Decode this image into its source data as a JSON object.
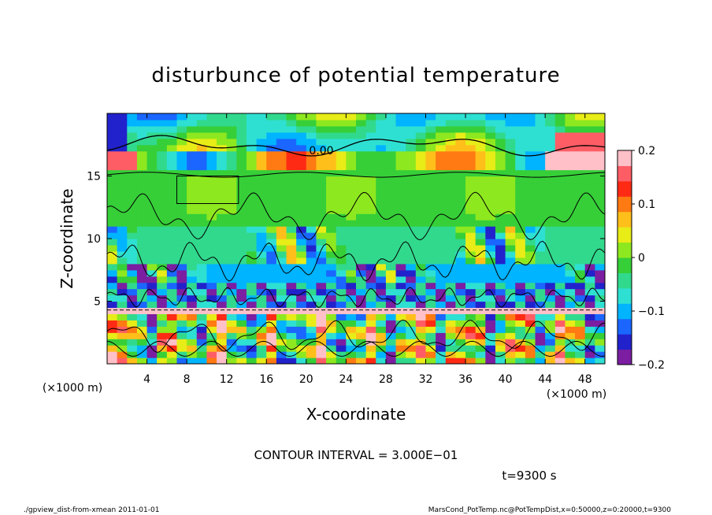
{
  "chart_data": {
    "type": "heatmap",
    "title": "disturbunce of potential temperature",
    "xlabel": "X-coordinate",
    "ylabel": "Z-coordinate",
    "x_unit": "(×1000 m)",
    "y_unit": "(×1000 m)",
    "xlim": [
      0,
      50
    ],
    "ylim": [
      0,
      20
    ],
    "x_ticks": [
      "4",
      "8",
      "12",
      "16",
      "20",
      "24",
      "28",
      "32",
      "36",
      "40",
      "44",
      "48"
    ],
    "x_tick_values": [
      4,
      8,
      12,
      16,
      20,
      24,
      28,
      32,
      36,
      40,
      44,
      48
    ],
    "y_ticks": [
      "5",
      "10",
      "15"
    ],
    "y_tick_values": [
      5,
      10,
      15
    ],
    "colorbar": {
      "ticks": [
        "0.2",
        "0.1",
        "0",
        "−0.1",
        "−0.2"
      ],
      "tick_values": [
        0.2,
        0.1,
        0,
        -0.1,
        -0.2
      ],
      "range": [
        -0.2,
        0.2
      ]
    },
    "contour_label": "0.00",
    "contour_interval_text": "CONTOUR INTERVAL = 3.000E−01",
    "time_text": "t=9300 s"
  },
  "footer": {
    "left": "./gpview_dist-from-xmean  2011-01-01",
    "right": "MarsCond_PotTemp.nc@PotTempDist,x=0:50000,z=0:20000,t=9300"
  },
  "colors": {
    "colormap": [
      "#7b1ea2",
      "#2222cc",
      "#1a66ff",
      "#00b4ff",
      "#2ee0d2",
      "#31d98d",
      "#36cf38",
      "#8ee81f",
      "#e8ec17",
      "#ffbf1a",
      "#ff7a12",
      "#ff2a14",
      "#ff5d66",
      "#ffc0c8"
    ]
  }
}
